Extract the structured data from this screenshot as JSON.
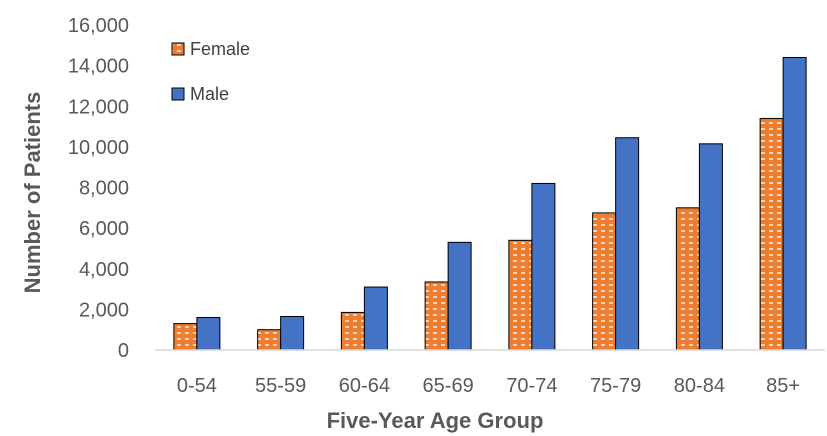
{
  "chart_data": {
    "type": "bar",
    "title": "",
    "xlabel": "Five-Year Age Group",
    "ylabel": "Number of Patients",
    "categories": [
      "0-54",
      "55-59",
      "60-64",
      "65-69",
      "70-74",
      "75-79",
      "80-84",
      "85+"
    ],
    "series": [
      {
        "name": "Female",
        "color": "#ED7D31",
        "pattern": "dashed-white",
        "values": [
          1300,
          1000,
          1850,
          3350,
          5400,
          6750,
          7000,
          11400
        ]
      },
      {
        "name": "Male",
        "color": "#4472C4",
        "pattern": "solid",
        "values": [
          1600,
          1650,
          3100,
          5300,
          8200,
          10450,
          10150,
          14400
        ]
      }
    ],
    "ylim": [
      0,
      16000
    ],
    "yticks": [
      "0",
      "2,000",
      "4,000",
      "6,000",
      "8,000",
      "10,000",
      "12,000",
      "14,000",
      "16,000"
    ],
    "grid": false,
    "legend": "top-left"
  }
}
